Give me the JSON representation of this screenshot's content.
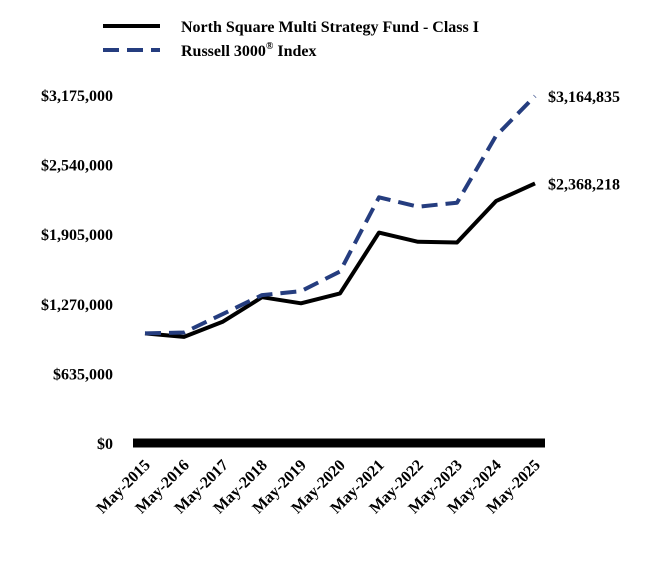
{
  "chart_data": {
    "type": "line",
    "title": "",
    "xlabel": "",
    "ylabel": "",
    "categories": [
      "May-2015",
      "May-2016",
      "May-2017",
      "May-2018",
      "May-2019",
      "May-2020",
      "May-2021",
      "May-2022",
      "May-2023",
      "May-2024",
      "May-2025"
    ],
    "ylim": [
      0,
      3175000
    ],
    "yticks": [
      0,
      635000,
      1270000,
      1905000,
      2540000,
      3175000
    ],
    "ytick_labels": [
      "$0",
      "$635,000",
      "$1,270,000",
      "$1,905,000",
      "$2,540,000",
      "$3,175,000"
    ],
    "legend_position": "top",
    "grid": false,
    "series": [
      {
        "name": "North Square Multi Strategy Fund - Class I",
        "style": "solid",
        "color": "#000000",
        "values": [
          1000000,
          968000,
          1108000,
          1330000,
          1275000,
          1365000,
          1920000,
          1836000,
          1829000,
          2207000,
          2368218
        ],
        "end_label": "$2,368,218"
      },
      {
        "name": "Russell 3000",
        "name_superscript": "®",
        "name_suffix": " Index",
        "style": "dashed",
        "color": "#253d7f",
        "values": [
          1000000,
          1008000,
          1178000,
          1349000,
          1385000,
          1565000,
          2242000,
          2156000,
          2192000,
          2802000,
          3164835
        ],
        "end_label": "$3,164,835"
      }
    ]
  }
}
